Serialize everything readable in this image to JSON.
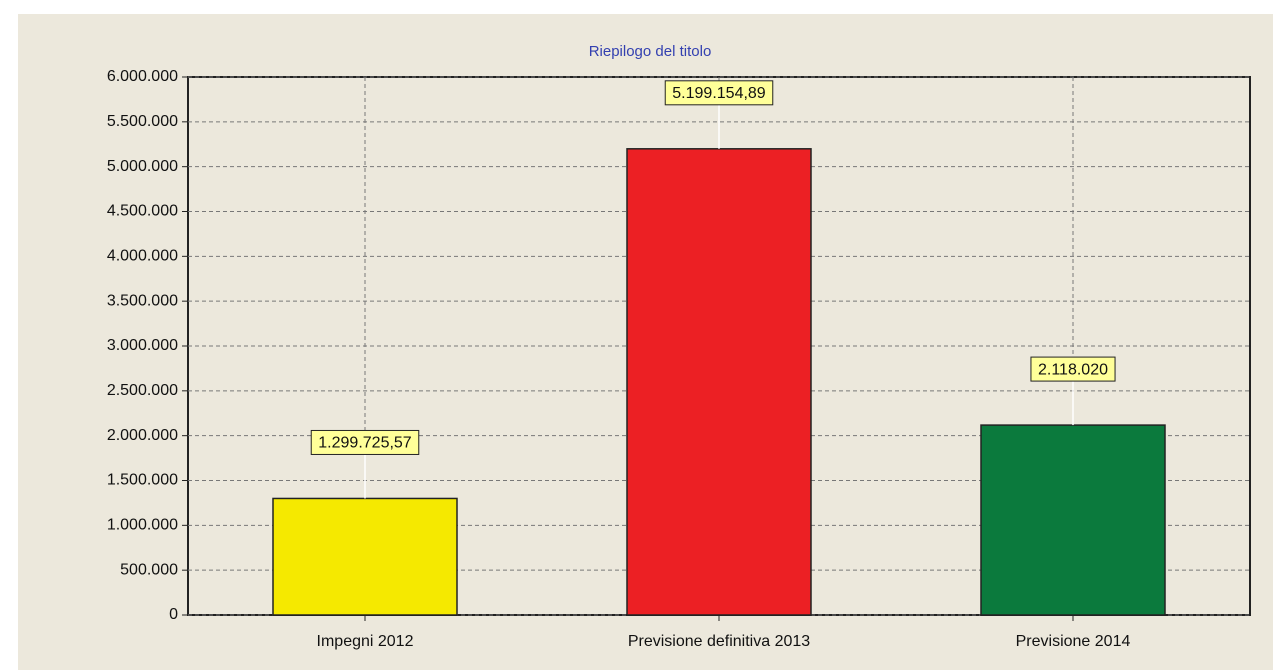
{
  "chart_data": {
    "type": "bar",
    "title": "Riepilogo del titolo",
    "categories": [
      "Impegni 2012",
      "Previsione definitiva 2013",
      "Previsione 2014"
    ],
    "values": [
      1299725.57,
      5199154.89,
      2118020
    ],
    "value_labels": [
      "1.299.725,57",
      "5.199.154,89",
      "2.118.020"
    ],
    "colors": [
      "#f5e900",
      "#ec2024",
      "#0b7a3d"
    ],
    "ylim": [
      0,
      6000000
    ],
    "yticks": [
      0,
      {
        "value": 500000,
        "label": "500.000"
      },
      {
        "value": 1000000,
        "label": "1.000.000"
      },
      {
        "value": 1500000,
        "label": "1.500.000"
      },
      {
        "value": 2000000,
        "label": "2.000.000"
      },
      {
        "value": 2500000,
        "label": "2.500.000"
      },
      {
        "value": 3000000,
        "label": "3.000.000"
      },
      {
        "value": 3500000,
        "label": "3.500.000"
      },
      {
        "value": 4000000,
        "label": "4.000.000"
      },
      {
        "value": 4500000,
        "label": "4.500.000"
      },
      {
        "value": 5000000,
        "label": "5.000.000"
      },
      {
        "value": 5500000,
        "label": "5.500.000"
      },
      {
        "value": 6000000,
        "label": "6.000.000"
      }
    ],
    "grid": true
  }
}
